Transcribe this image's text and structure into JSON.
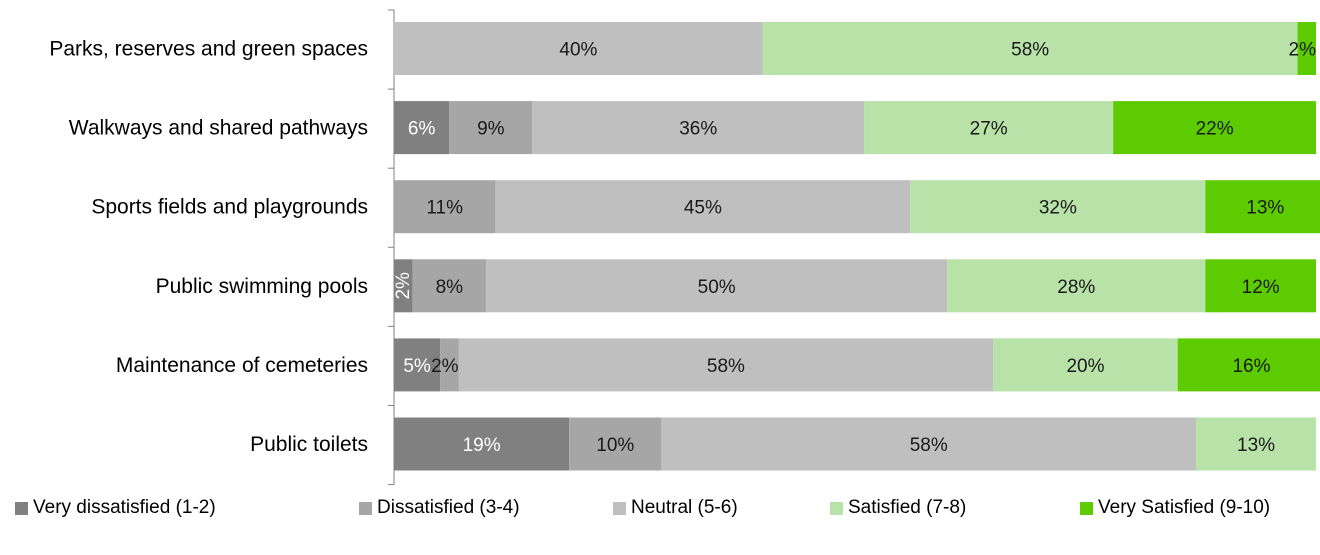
{
  "chart_data": {
    "type": "bar",
    "orientation": "horizontal",
    "stacked": true,
    "percent_stacked": true,
    "title": "",
    "xlabel": "",
    "ylabel": "",
    "xlim": [
      0,
      100
    ],
    "grid": false,
    "legend_position": "bottom",
    "categories": [
      "Parks, reserves and green spaces",
      "Walkways and shared pathways",
      "Sports fields and playgrounds",
      "Public swimming pools",
      "Maintenance of cemeteries",
      "Public toilets"
    ],
    "series": [
      {
        "name": "Very dissatisfied (1-2)",
        "color": "#808080",
        "values": [
          0,
          6,
          0,
          2,
          5,
          19
        ],
        "labels": [
          "",
          "6%",
          "",
          "2%",
          "5%",
          "19%"
        ]
      },
      {
        "name": "Dissatisfied (3-4)",
        "color": "#a6a6a6",
        "values": [
          0,
          9,
          11,
          8,
          2,
          10
        ],
        "labels": [
          "",
          "9%",
          "11%",
          "8%",
          "2%",
          "10%"
        ]
      },
      {
        "name": "Neutral (5-6)",
        "color": "#bfbfbf",
        "values": [
          40,
          36,
          45,
          50,
          58,
          58
        ],
        "labels": [
          "40%",
          "36%",
          "45%",
          "50%",
          "58%",
          "58%"
        ]
      },
      {
        "name": "Satisfied (7-8)",
        "color": "#b8e2a8",
        "values": [
          58,
          27,
          32,
          28,
          20,
          13
        ],
        "labels": [
          "58%",
          "27%",
          "32%",
          "28%",
          "20%",
          "13%"
        ]
      },
      {
        "name": "Very Satisfied (9-10)",
        "color": "#5ccc00",
        "values": [
          2,
          22,
          13,
          12,
          16,
          0
        ],
        "labels": [
          "2%",
          "22%",
          "13%",
          "12%",
          "16%",
          ""
        ]
      }
    ]
  }
}
